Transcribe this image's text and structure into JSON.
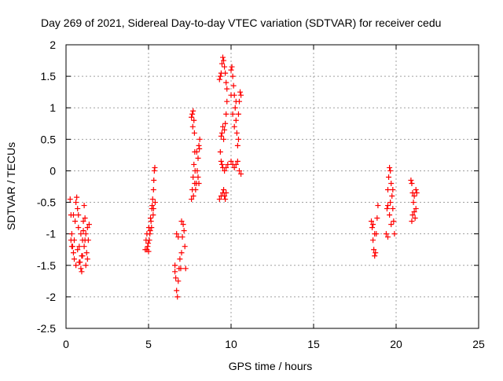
{
  "chart_data": {
    "type": "scatter",
    "title": "Day 269 of 2021, Sidereal Day-to-day VTEC variation (SDTVAR) for receiver cedu",
    "xlabel": "GPS time / hours",
    "ylabel": "SDTVAR / TECUs",
    "xlim": [
      0,
      25
    ],
    "ylim": [
      -2.5,
      2
    ],
    "xticks": [
      0,
      5,
      10,
      15,
      20,
      25
    ],
    "xtick_labels": [
      "0",
      "5",
      "10",
      "15",
      "20",
      "25"
    ],
    "yticks": [
      -2.5,
      -2,
      -1.5,
      -1,
      -0.5,
      0,
      0.5,
      1,
      1.5,
      2
    ],
    "ytick_labels": [
      "-2.5",
      "-2",
      "-1.5",
      "-1",
      "-0.5",
      "0",
      "0.5",
      "1",
      "1.5",
      "2"
    ],
    "grid": true,
    "marker": "plus",
    "color": "#ff0000",
    "series": [
      {
        "name": "SDTVAR",
        "segments": [
          [
            [
              0.25,
              -0.45
            ],
            [
              0.3,
              -0.7
            ],
            [
              0.35,
              -1.0
            ],
            [
              0.4,
              -1.2
            ],
            [
              0.45,
              -1.3
            ],
            [
              0.5,
              -1.1
            ],
            [
              0.55,
              -0.8
            ],
            [
              0.6,
              -0.5
            ],
            [
              0.65,
              -0.42
            ],
            [
              0.7,
              -0.6
            ],
            [
              0.75,
              -0.9
            ],
            [
              0.8,
              -1.2
            ],
            [
              0.85,
              -1.45
            ],
            [
              0.9,
              -1.55
            ],
            [
              0.95,
              -1.35
            ],
            [
              1.0,
              -1.1
            ],
            [
              1.05,
              -0.8
            ],
            [
              1.1,
              -0.55
            ],
            [
              1.15,
              -0.75
            ],
            [
              1.2,
              -1.0
            ],
            [
              1.25,
              -1.3
            ],
            [
              1.3,
              -1.4
            ],
            [
              1.35,
              -1.1
            ],
            [
              1.4,
              -0.85
            ],
            [
              0.5,
              -1.4
            ],
            [
              0.7,
              -1.25
            ],
            [
              0.9,
              -1.0
            ],
            [
              1.1,
              -1.2
            ],
            [
              1.3,
              -0.9
            ],
            [
              0.35,
              -1.2
            ],
            [
              0.6,
              -1.5
            ],
            [
              0.8,
              -1.45
            ],
            [
              1.0,
              -1.35
            ],
            [
              1.2,
              -1.5
            ],
            [
              0.45,
              -0.7
            ],
            [
              0.75,
              -0.7
            ],
            [
              1.05,
              -0.95
            ],
            [
              0.3,
              -1.1
            ],
            [
              0.95,
              -1.6
            ],
            [
              1.15,
              -1.1
            ]
          ],
          [
            [
              4.8,
              -1.25
            ],
            [
              4.85,
              -1.1
            ],
            [
              4.9,
              -1.0
            ],
            [
              4.95,
              -1.2
            ],
            [
              5.0,
              -1.28
            ],
            [
              5.05,
              -1.1
            ],
            [
              5.1,
              -0.95
            ],
            [
              5.15,
              -0.8
            ],
            [
              5.2,
              -0.6
            ],
            [
              5.25,
              -0.45
            ],
            [
              5.3,
              -0.3
            ],
            [
              5.32,
              -0.15
            ],
            [
              5.35,
              0.0
            ],
            [
              5.38,
              0.05
            ],
            [
              5.4,
              -0.5
            ],
            [
              5.28,
              -0.7
            ],
            [
              5.18,
              -0.9
            ],
            [
              5.08,
              -1.0
            ],
            [
              4.98,
              -1.15
            ],
            [
              5.12,
              -0.75
            ],
            [
              5.22,
              -0.55
            ],
            [
              4.9,
              -1.25
            ],
            [
              5.02,
              -0.9
            ],
            [
              5.3,
              -0.6
            ]
          ],
          [
            [
              6.6,
              -1.5
            ],
            [
              6.65,
              -1.7
            ],
            [
              6.7,
              -1.9
            ],
            [
              6.75,
              -2.0
            ],
            [
              6.8,
              -1.75
            ],
            [
              6.85,
              -1.55
            ],
            [
              6.9,
              -1.4
            ],
            [
              6.95,
              -1.55
            ],
            [
              7.0,
              -1.3
            ],
            [
              7.05,
              -1.05
            ],
            [
              7.1,
              -0.85
            ],
            [
              7.15,
              -0.95
            ],
            [
              7.2,
              -1.2
            ],
            [
              7.25,
              -1.55
            ],
            [
              6.7,
              -1.0
            ],
            [
              6.8,
              -1.05
            ],
            [
              6.6,
              -1.6
            ],
            [
              7.0,
              -0.8
            ]
          ],
          [
            [
              7.6,
              -0.45
            ],
            [
              7.65,
              -0.3
            ],
            [
              7.7,
              -0.1
            ],
            [
              7.75,
              0.1
            ],
            [
              7.8,
              0.3
            ],
            [
              7.6,
              0.85
            ],
            [
              7.65,
              0.9
            ],
            [
              7.7,
              0.95
            ],
            [
              7.75,
              0.8
            ],
            [
              7.8,
              -0.2
            ],
            [
              7.85,
              -0.3
            ],
            [
              7.9,
              -0.2
            ],
            [
              7.95,
              0.0
            ],
            [
              8.0,
              0.2
            ],
            [
              8.05,
              0.4
            ],
            [
              8.1,
              0.5
            ],
            [
              8.0,
              -0.1
            ],
            [
              8.05,
              -0.2
            ],
            [
              7.72,
              -0.4
            ],
            [
              7.82,
              0.0
            ],
            [
              7.92,
              0.3
            ],
            [
              7.68,
              0.7
            ],
            [
              7.78,
              0.6
            ],
            [
              8.08,
              0.35
            ]
          ],
          [
            [
              9.3,
              1.45
            ],
            [
              9.35,
              1.5
            ],
            [
              9.4,
              1.55
            ],
            [
              9.45,
              1.7
            ],
            [
              9.5,
              1.8
            ],
            [
              9.55,
              1.75
            ],
            [
              9.6,
              1.65
            ],
            [
              9.65,
              1.55
            ],
            [
              9.7,
              1.4
            ],
            [
              9.75,
              1.3
            ],
            [
              9.4,
              0.55
            ],
            [
              9.45,
              0.6
            ],
            [
              9.5,
              0.7
            ],
            [
              9.55,
              0.5
            ],
            [
              9.6,
              0.65
            ],
            [
              9.65,
              0.75
            ],
            [
              9.7,
              0.9
            ],
            [
              9.75,
              1.1
            ],
            [
              9.4,
              0.15
            ],
            [
              9.5,
              0.05
            ],
            [
              9.6,
              0.0
            ],
            [
              9.7,
              0.05
            ],
            [
              9.8,
              0.1
            ],
            [
              9.3,
              -0.45
            ],
            [
              9.4,
              -0.4
            ],
            [
              9.5,
              -0.35
            ],
            [
              9.6,
              -0.4
            ],
            [
              9.7,
              -0.35
            ],
            [
              9.35,
              0.3
            ],
            [
              9.45,
              0.1
            ],
            [
              9.55,
              -0.3
            ],
            [
              9.65,
              -0.45
            ]
          ],
          [
            [
              10.0,
              1.6
            ],
            [
              10.05,
              1.65
            ],
            [
              10.1,
              1.5
            ],
            [
              10.15,
              1.35
            ],
            [
              10.2,
              1.2
            ],
            [
              10.25,
              1.0
            ],
            [
              10.3,
              0.8
            ],
            [
              10.35,
              0.6
            ],
            [
              10.4,
              0.4
            ],
            [
              10.45,
              0.5
            ],
            [
              10.5,
              1.1
            ],
            [
              10.55,
              1.25
            ],
            [
              10.6,
              1.2
            ],
            [
              10.0,
              0.15
            ],
            [
              10.1,
              0.1
            ],
            [
              10.2,
              0.05
            ],
            [
              10.3,
              0.1
            ],
            [
              10.4,
              0.15
            ],
            [
              10.5,
              0.0
            ],
            [
              10.6,
              -0.05
            ],
            [
              10.0,
              1.2
            ],
            [
              10.1,
              0.9
            ],
            [
              10.2,
              0.7
            ],
            [
              10.3,
              1.1
            ],
            [
              10.45,
              0.9
            ]
          ],
          [
            [
              18.5,
              -0.8
            ],
            [
              18.55,
              -0.9
            ],
            [
              18.6,
              -1.1
            ],
            [
              18.65,
              -1.25
            ],
            [
              18.7,
              -1.35
            ],
            [
              18.75,
              -1.3
            ],
            [
              18.8,
              -1.0
            ],
            [
              18.85,
              -0.75
            ],
            [
              18.9,
              -0.55
            ],
            [
              18.6,
              -0.85
            ],
            [
              18.7,
              -1.0
            ]
          ],
          [
            [
              19.4,
              -1.0
            ],
            [
              19.45,
              -0.6
            ],
            [
              19.5,
              -0.3
            ],
            [
              19.55,
              -0.1
            ],
            [
              19.6,
              0.05
            ],
            [
              19.65,
              0.0
            ],
            [
              19.7,
              -0.2
            ],
            [
              19.75,
              -0.4
            ],
            [
              19.8,
              -0.6
            ],
            [
              19.85,
              -0.8
            ],
            [
              19.9,
              -1.0
            ],
            [
              19.5,
              -0.55
            ],
            [
              19.6,
              -0.7
            ],
            [
              19.7,
              -0.85
            ],
            [
              19.5,
              -1.05
            ],
            [
              19.65,
              -0.5
            ],
            [
              19.8,
              -0.3
            ]
          ],
          [
            [
              20.9,
              -0.15
            ],
            [
              20.95,
              -0.2
            ],
            [
              21.0,
              -0.35
            ],
            [
              21.05,
              -0.5
            ],
            [
              21.1,
              -0.65
            ],
            [
              21.15,
              -0.75
            ],
            [
              21.0,
              -0.7
            ],
            [
              21.1,
              -0.4
            ],
            [
              21.2,
              -0.3
            ],
            [
              21.25,
              -0.35
            ],
            [
              21.2,
              -0.6
            ],
            [
              20.95,
              -0.8
            ]
          ]
        ]
      }
    ]
  }
}
